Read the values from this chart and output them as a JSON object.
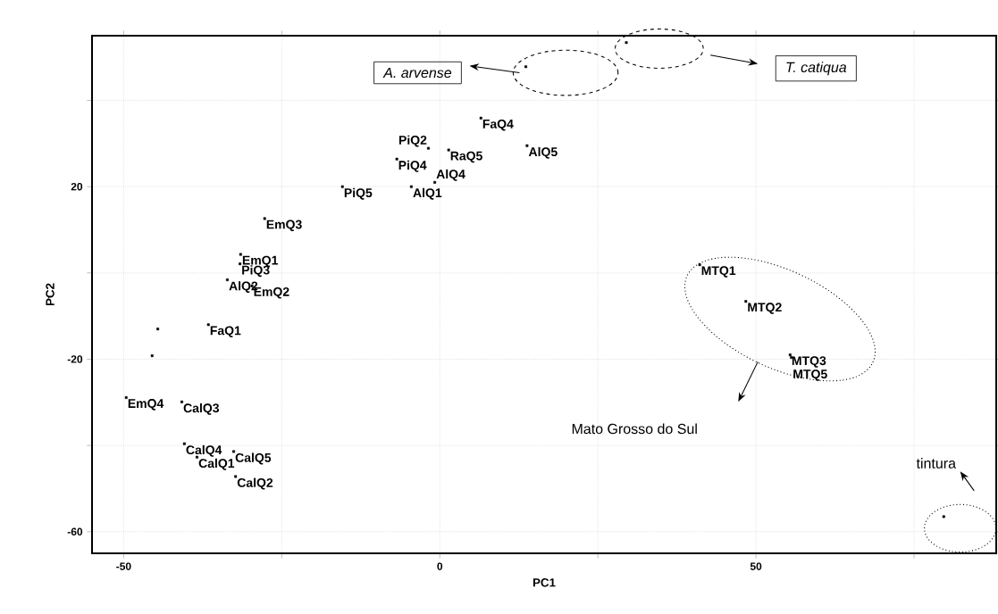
{
  "chart_data": {
    "type": "scatter",
    "xlabel": "PC1",
    "ylabel": "PC2",
    "color": "#000000",
    "marker": "square",
    "grid": true,
    "xlim": [
      -55,
      88
    ],
    "ylim": [
      -65,
      55
    ],
    "xticks": [
      -50,
      {
        "value": -25,
        "label": null
      },
      0,
      {
        "value": 25,
        "label": null
      },
      50,
      {
        "value": 75,
        "label": null
      }
    ],
    "yticks": [
      -60,
      {
        "value": -40,
        "label": null
      },
      -20,
      {
        "value": 0,
        "label": null
      },
      20,
      {
        "value": 40,
        "label": null
      }
    ],
    "x": [
      6.5,
      13.8,
      -1.8,
      1.4,
      -6.8,
      -15.4,
      -4.5,
      -0.8,
      -27.7,
      -31.5,
      -31.6,
      -33.6,
      -29.7,
      41.1,
      48.4,
      55.4,
      55.6,
      -49.6,
      -40.8,
      -40.4,
      -32.6,
      -38.4,
      -32.3,
      -36.6,
      -44.6,
      -45.5,
      13.6,
      29.5,
      79.7
    ],
    "values": [
      35.9,
      29.5,
      28.9,
      28.5,
      26.4,
      20,
      20,
      21,
      12.6,
      4.3,
      2.1,
      -1.6,
      -3,
      1.9,
      -6.6,
      -19,
      -19.6,
      -28.9,
      -29.9,
      -39.6,
      -41.4,
      -42.7,
      -47.2,
      -12,
      -13,
      -19.2,
      47.8,
      53.4,
      -56.5
    ],
    "annotations": [
      "*A. arvense*",
      "*T. catiqua*",
      "Mato Grosso do Sul",
      "tintura",
      {
        "text": "FaQ4",
        "x": 6.5,
        "y": 35.9
      },
      {
        "text": "AlQ5",
        "x": 13.8,
        "y": 29.5
      },
      {
        "text": "PiQ2",
        "x": -1.8,
        "y": 28.9
      },
      {
        "text": "RaQ5",
        "x": 1.4,
        "y": 28.5
      },
      {
        "text": "PiQ4",
        "x": -6.8,
        "y": 26.4
      },
      {
        "text": "PiQ5",
        "x": -15.4,
        "y": 20
      },
      {
        "text": "AlQ1",
        "x": -4.5,
        "y": 20
      },
      {
        "text": "AlQ4",
        "x": -0.8,
        "y": 21
      },
      {
        "text": "EmQ3",
        "x": -27.7,
        "y": 12.6
      },
      {
        "text": "EmQ1",
        "x": -31.5,
        "y": 4.3
      },
      {
        "text": "PiQ3",
        "x": -31.6,
        "y": 2.1
      },
      {
        "text": "AlQ2",
        "x": -33.6,
        "y": -1.6
      },
      {
        "text": "EmQ2",
        "x": -29.7,
        "y": -3
      },
      {
        "text": "MTQ1",
        "x": 41.1,
        "y": 1.9
      },
      {
        "text": "MTQ2",
        "x": 48.4,
        "y": -6.6
      },
      {
        "text": "MTQ3",
        "x": 55.4,
        "y": -19
      },
      {
        "text": "MTQ5",
        "x": 55.6,
        "y": -19.6
      },
      {
        "text": "EmQ4",
        "x": -49.6,
        "y": -28.9
      },
      {
        "text": "CalQ3",
        "x": -40.8,
        "y": -29.9
      },
      {
        "text": "CalQ4",
        "x": -40.4,
        "y": -39.6
      },
      {
        "text": "CalQ5",
        "x": -32.6,
        "y": -41.4
      },
      {
        "text": "CalQ1",
        "x": -38.4,
        "y": -42.7
      },
      {
        "text": "CalQ2",
        "x": -32.3,
        "y": -47.2
      },
      {
        "text": "FaQ1",
        "x": -36.6,
        "y": -12
      }
    ]
  }
}
